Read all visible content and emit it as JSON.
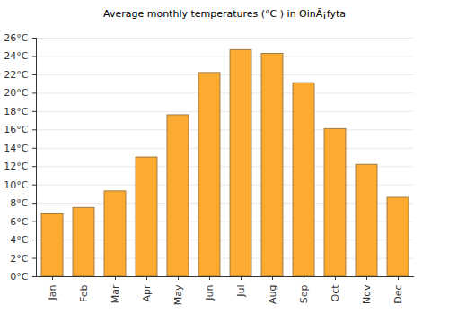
{
  "chart_data": {
    "type": "bar",
    "title": "Average monthly temperatures (°C ) in OinĂ¡fyta",
    "categories": [
      "Jan",
      "Feb",
      "Mar",
      "Apr",
      "May",
      "Jun",
      "Jul",
      "Aug",
      "Sep",
      "Oct",
      "Nov",
      "Dec"
    ],
    "values": [
      6.9,
      7.5,
      9.3,
      13.0,
      17.6,
      22.2,
      24.7,
      24.3,
      21.1,
      16.1,
      12.2,
      8.6
    ],
    "color": "#fcaa30",
    "ylim": [
      0,
      26
    ],
    "yticks": [
      {
        "value": 0,
        "label": "0°C"
      },
      {
        "value": 2,
        "label": "2°C"
      },
      {
        "value": 4,
        "label": "4°C"
      },
      {
        "value": 6,
        "label": "6°C"
      },
      {
        "value": 8,
        "label": "8°C"
      },
      {
        "value": 10,
        "label": "10°C"
      },
      {
        "value": 12,
        "label": "12°C"
      },
      {
        "value": 14,
        "label": "14°C"
      },
      {
        "value": 16,
        "label": "16°C"
      },
      {
        "value": 18,
        "label": "18°C"
      },
      {
        "value": 20,
        "label": "20°C"
      },
      {
        "value": 22,
        "label": "22°C"
      },
      {
        "value": 24,
        "label": "24°C"
      },
      {
        "value": 26,
        "label": "26°C"
      }
    ],
    "grid": true
  }
}
